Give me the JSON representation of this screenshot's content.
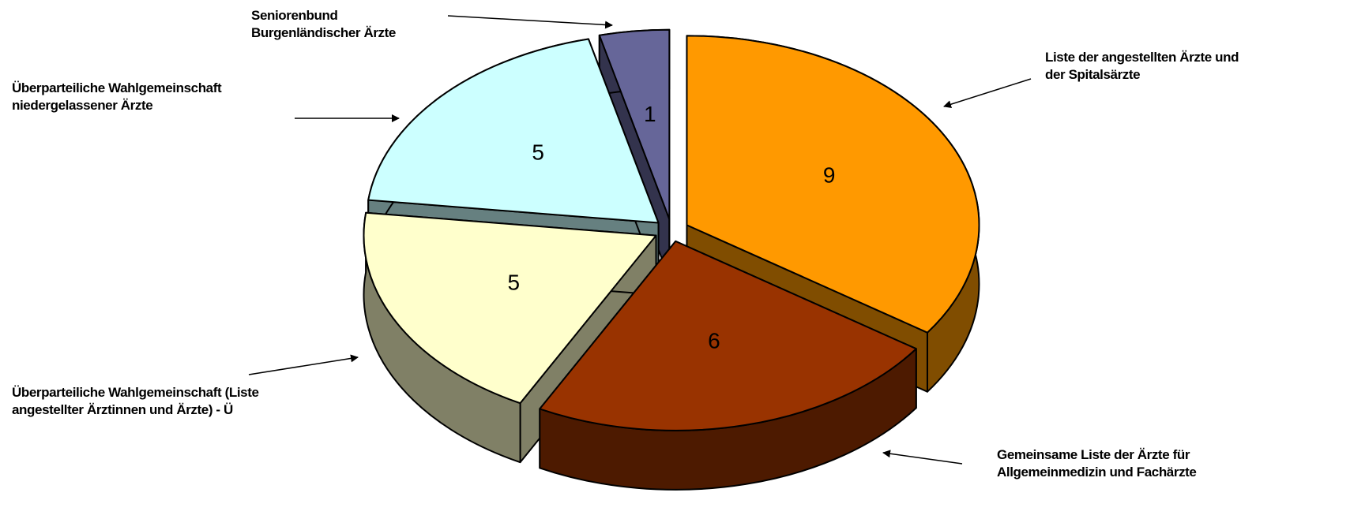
{
  "chart_data": {
    "type": "pie",
    "categories": [
      "Liste der angestellten Ärzte und der Spitalsärzte",
      "Gemeinsame Liste der Ärzte für Allgemeinmedizin und Fachärzte",
      "Überparteiliche Wahlgemeinschaft (Liste angestellter Ärztinnen und Ärzte) - Ü",
      "Überparteiliche Wahlgemeinschaft niedergelassener Ärzte",
      "Seniorenbund Burgenländischer Ärzte"
    ],
    "values": [
      9,
      6,
      5,
      5,
      1
    ],
    "colors": [
      "#ff9900",
      "#993300",
      "#ffffcc",
      "#ccffff",
      "#666699"
    ]
  }
}
